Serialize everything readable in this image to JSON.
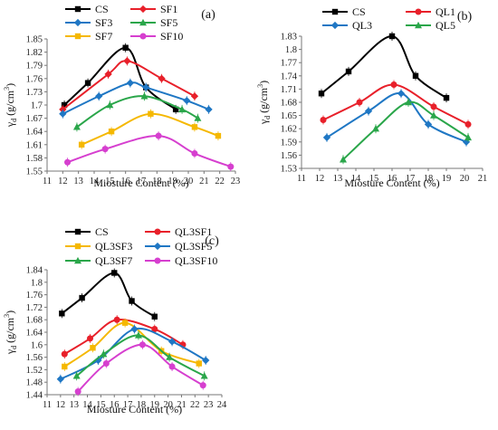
{
  "chart_data": [
    {
      "type": "line",
      "panel_label": "(a)",
      "xlabel": "Miosture Content (%)",
      "ylabel": "γd (g/cm³)",
      "ylabel_main": "γ",
      "ylabel_sub": "d",
      "ylabel_unit": " (g/cm",
      "ylabel_sup": "3",
      "ylabel_end": ")",
      "xlim": [
        11,
        23
      ],
      "ylim": [
        1.55,
        1.85
      ],
      "xticks": [
        "11",
        "12",
        "13",
        "14",
        "15",
        "16",
        "17",
        "18",
        "19",
        "20",
        "21",
        "22",
        "23"
      ],
      "yticks": [
        "1.55",
        "1.58",
        "1.61",
        "1.64",
        "1.67",
        "1.7",
        "1.73",
        "1.76",
        "1.79",
        "1.82",
        "1.85"
      ],
      "legend_placement": "top-left",
      "grid": false,
      "series": [
        {
          "name": "CS",
          "color": "#000000",
          "marker": "square",
          "x": [
            12.1,
            13.6,
            16.0,
            17.3,
            19.2
          ],
          "y": [
            1.7,
            1.75,
            1.83,
            1.74,
            1.69
          ]
        },
        {
          "name": "SF1",
          "color": "#e8202a",
          "marker": "diamond",
          "x": [
            12.0,
            14.9,
            16.1,
            18.3,
            20.4
          ],
          "y": [
            1.69,
            1.77,
            1.8,
            1.76,
            1.72
          ]
        },
        {
          "name": "SF3",
          "color": "#1f77c4",
          "marker": "diamond",
          "x": [
            12.0,
            14.3,
            16.3,
            17.3,
            19.9,
            21.3
          ],
          "y": [
            1.68,
            1.72,
            1.75,
            1.74,
            1.71,
            1.69
          ]
        },
        {
          "name": "SF5",
          "color": "#2aa64a",
          "marker": "triangle",
          "x": [
            12.9,
            15.0,
            17.2,
            19.6,
            20.6
          ],
          "y": [
            1.65,
            1.7,
            1.72,
            1.69,
            1.67
          ]
        },
        {
          "name": "SF7",
          "color": "#f5b800",
          "marker": "square",
          "x": [
            13.2,
            15.1,
            17.6,
            20.4,
            21.9
          ],
          "y": [
            1.61,
            1.64,
            1.68,
            1.65,
            1.63
          ]
        },
        {
          "name": "SF10",
          "color": "#d63fcf",
          "marker": "circle",
          "x": [
            12.3,
            14.7,
            18.1,
            20.4,
            22.7
          ],
          "y": [
            1.57,
            1.6,
            1.63,
            1.59,
            1.56
          ]
        }
      ]
    },
    {
      "type": "line",
      "panel_label": "(b)",
      "xlabel": "Miosture Content (%)",
      "ylabel": "γd (g/cm³)",
      "ylabel_main": "γ",
      "ylabel_sub": "d",
      "ylabel_unit": " (g/cm",
      "ylabel_sup": "3",
      "ylabel_end": ")",
      "xlim": [
        11,
        21
      ],
      "ylim": [
        1.53,
        1.83
      ],
      "xticks": [
        "11",
        "12",
        "13",
        "14",
        "15",
        "16",
        "17",
        "18",
        "19",
        "20",
        "21"
      ],
      "yticks": [
        "1.53",
        "1.56",
        "1.59",
        "1.62",
        "1.65",
        "1.68",
        "1.71",
        "1.74",
        "1.77",
        "1.8",
        "1.83"
      ],
      "legend_placement": "top-left",
      "grid": false,
      "series": [
        {
          "name": "CS",
          "color": "#000000",
          "marker": "square",
          "x": [
            12.1,
            13.6,
            16.0,
            17.3,
            19.0
          ],
          "y": [
            1.7,
            1.75,
            1.83,
            1.74,
            1.69
          ]
        },
        {
          "name": "QL1",
          "color": "#e8202a",
          "marker": "circle",
          "x": [
            12.2,
            14.2,
            16.1,
            18.3,
            20.2
          ],
          "y": [
            1.64,
            1.68,
            1.72,
            1.67,
            1.63
          ]
        },
        {
          "name": "QL3",
          "color": "#1f77c4",
          "marker": "diamond",
          "x": [
            12.4,
            14.7,
            16.5,
            18.0,
            20.1
          ],
          "y": [
            1.6,
            1.66,
            1.7,
            1.63,
            1.59
          ]
        },
        {
          "name": "QL5",
          "color": "#2aa64a",
          "marker": "triangle",
          "x": [
            13.3,
            15.1,
            16.9,
            18.3,
            20.2
          ],
          "y": [
            1.55,
            1.62,
            1.68,
            1.65,
            1.6
          ]
        }
      ]
    },
    {
      "type": "line",
      "panel_label": "(c)",
      "xlabel": "Miosture Content (%)",
      "ylabel": "γd (g/cm³)",
      "ylabel_main": "γ",
      "ylabel_sub": "d",
      "ylabel_unit": " (g/cm",
      "ylabel_sup": "3",
      "ylabel_end": ")",
      "xlim": [
        11,
        24
      ],
      "ylim": [
        1.44,
        1.84
      ],
      "xticks": [
        "11",
        "12",
        "13",
        "14",
        "15",
        "16",
        "17",
        "18",
        "19",
        "20",
        "21",
        "22",
        "23",
        "24"
      ],
      "yticks": [
        "1.44",
        "1.48",
        "1.52",
        "1.56",
        "1.6",
        "1.64",
        "1.68",
        "1.72",
        "1.76",
        "1.8",
        "1.84"
      ],
      "legend_placement": "top-left",
      "grid": false,
      "series": [
        {
          "name": "CS",
          "color": "#000000",
          "marker": "square",
          "x": [
            12.1,
            13.6,
            16.0,
            17.3,
            19.0
          ],
          "y": [
            1.7,
            1.75,
            1.83,
            1.74,
            1.69
          ]
        },
        {
          "name": "QL3SF1",
          "color": "#e8202a",
          "marker": "circle",
          "x": [
            12.3,
            14.2,
            16.2,
            19.0,
            21.1
          ],
          "y": [
            1.57,
            1.62,
            1.68,
            1.65,
            1.6
          ]
        },
        {
          "name": "QL3SF3",
          "color": "#f5b800",
          "marker": "square",
          "x": [
            12.3,
            14.4,
            16.8,
            19.5,
            22.3
          ],
          "y": [
            1.53,
            1.59,
            1.67,
            1.58,
            1.54
          ]
        },
        {
          "name": "QL3SF5",
          "color": "#1f77c4",
          "marker": "diamond",
          "x": [
            12.0,
            14.8,
            17.5,
            20.3,
            22.8
          ],
          "y": [
            1.49,
            1.55,
            1.65,
            1.61,
            1.55
          ]
        },
        {
          "name": "QL3SF7",
          "color": "#2aa64a",
          "marker": "triangle",
          "x": [
            13.2,
            15.2,
            17.8,
            20.1,
            22.7
          ],
          "y": [
            1.5,
            1.57,
            1.63,
            1.56,
            1.5
          ]
        },
        {
          "name": "QL3SF10",
          "color": "#d63fcf",
          "marker": "circle",
          "x": [
            13.3,
            15.4,
            18.1,
            20.3,
            22.6
          ],
          "y": [
            1.45,
            1.54,
            1.6,
            1.53,
            1.47
          ]
        }
      ]
    }
  ]
}
